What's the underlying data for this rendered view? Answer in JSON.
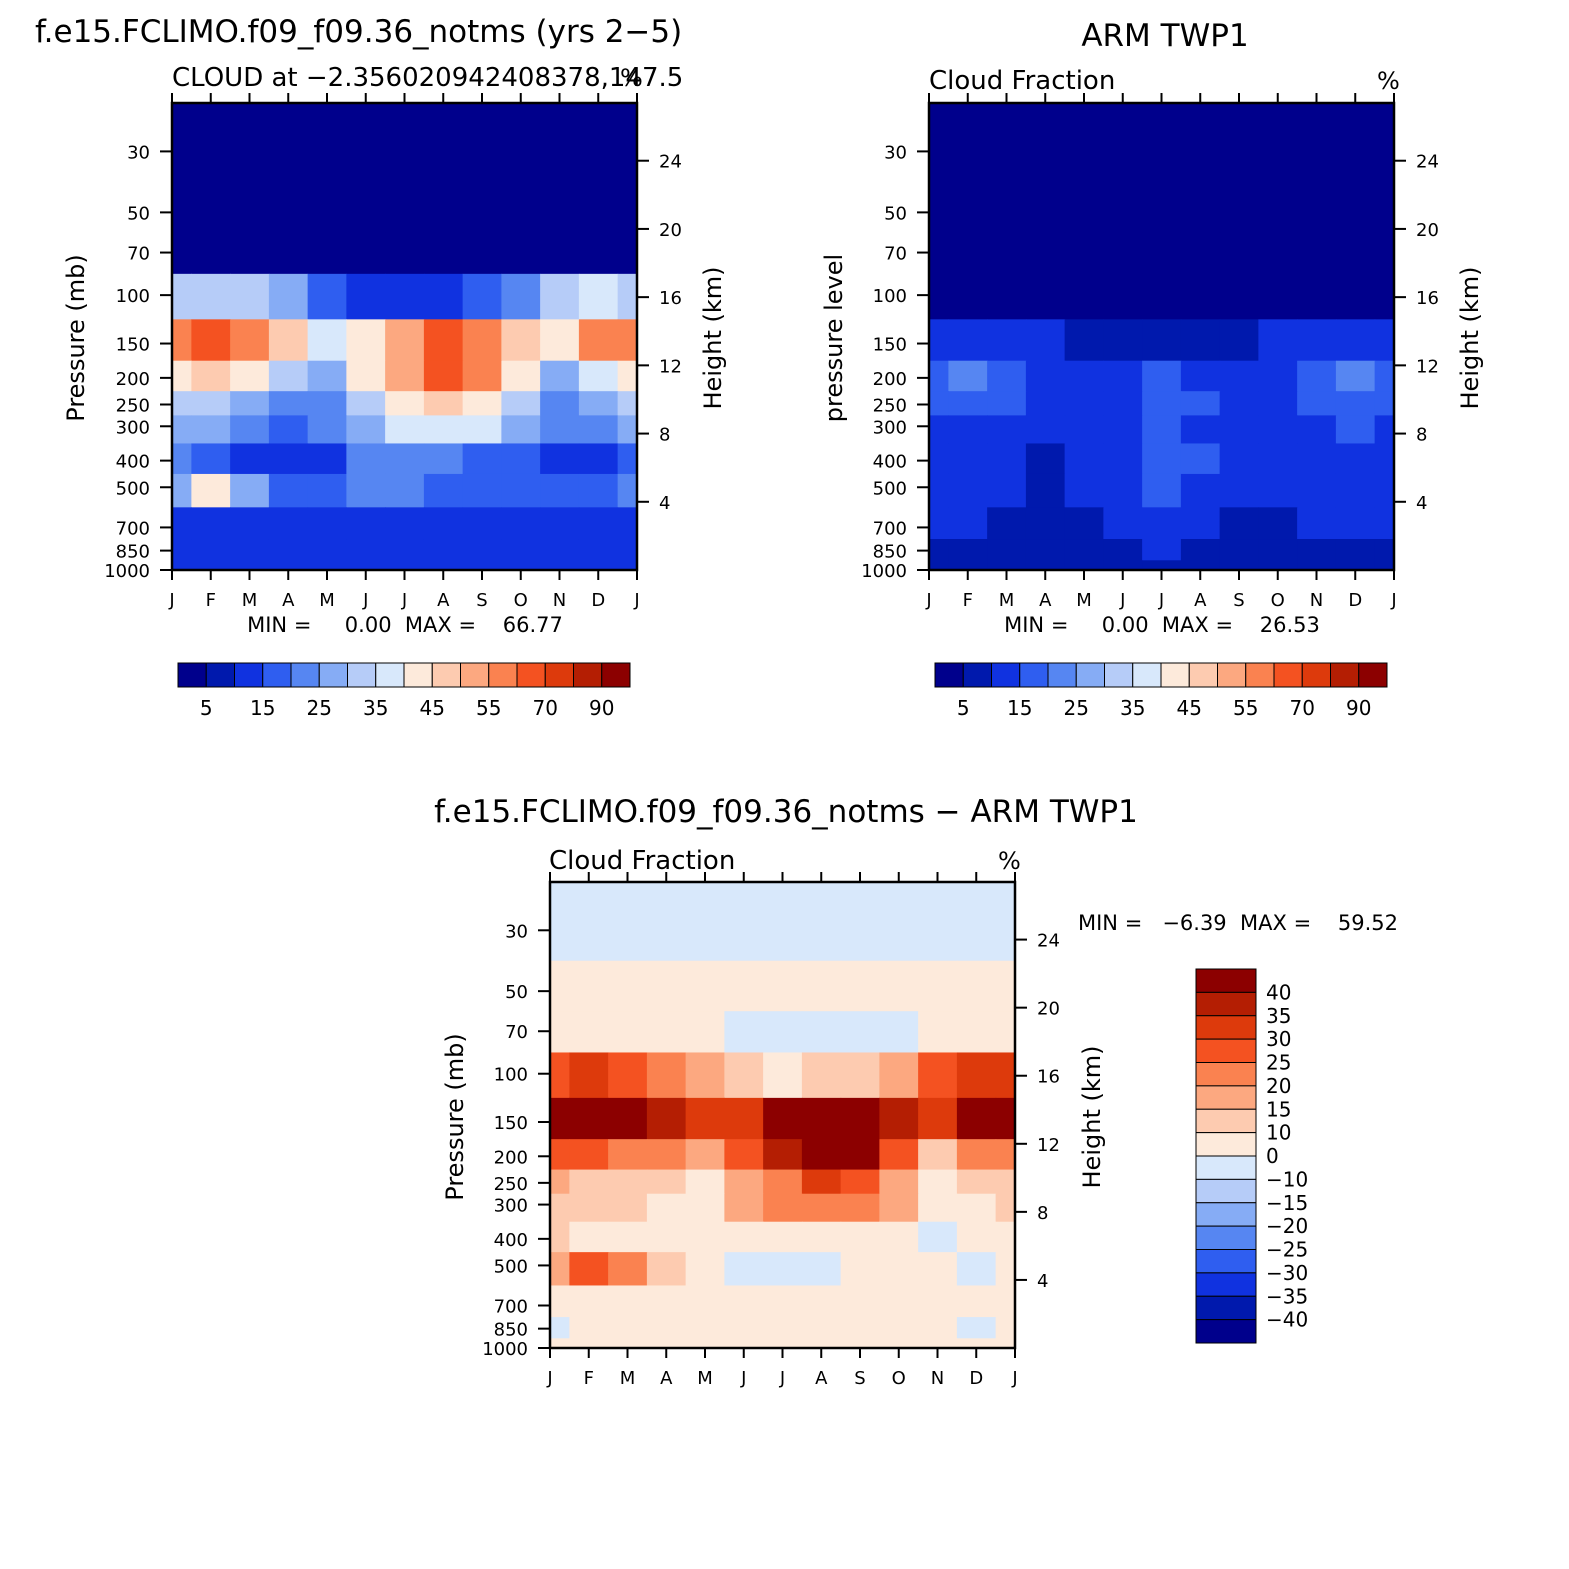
{
  "colors": {
    "abs_scale": [
      "#00008c",
      "#0019ad",
      "#1032e0",
      "#2f5ef0",
      "#5686f2",
      "#86acf5",
      "#b6ccf8",
      "#d8e8fb",
      "#fdeadb",
      "#fdcbb0",
      "#fca880",
      "#fa8250",
      "#f45221",
      "#dd3a0c",
      "#b41e03",
      "#8c0000"
    ],
    "diff_scale": [
      "#8c0000",
      "#b41e03",
      "#dd3a0c",
      "#f45221",
      "#fa8250",
      "#fca880",
      "#fdcbb0",
      "#fdeadb",
      "#d8e8fb",
      "#b6ccf8",
      "#86acf5",
      "#5686f2",
      "#2f5ef0",
      "#1032e0",
      "#0019ad",
      "#00008c"
    ]
  },
  "axes": {
    "months": [
      "J",
      "F",
      "M",
      "A",
      "M",
      "J",
      "J",
      "A",
      "S",
      "O",
      "N",
      "D",
      "J"
    ],
    "pressure_ticks": [
      "30",
      "50",
      "70",
      "100",
      "150",
      "200",
      "250",
      "300",
      "400",
      "500",
      "700",
      "850",
      "1000"
    ],
    "height_ticks": [
      "24",
      "20",
      "16",
      "12",
      "8",
      "4"
    ]
  },
  "panels": {
    "model": {
      "title": "f.e15.FCLIMO.f09_f09.36_notms (yrs 2−5)",
      "subtitle": "CLOUD at −2.356020942408378,147.5",
      "units": "%",
      "ylabel": "Pressure (mb)",
      "ylabel_right": "Height (km)",
      "minmax": "MIN =     0.00  MAX =    66.77",
      "colorbar_labels": [
        "5",
        "15",
        "25",
        "35",
        "45",
        "55",
        "70",
        "90"
      ]
    },
    "obs": {
      "title": "ARM TWP1",
      "subtitle": "Cloud Fraction",
      "units": "%",
      "ylabel": "pressure level",
      "ylabel_right": "Height (km)",
      "minmax": "MIN =     0.00  MAX =    26.53",
      "colorbar_labels": [
        "5",
        "15",
        "25",
        "35",
        "45",
        "55",
        "70",
        "90"
      ]
    },
    "diff": {
      "title": "f.e15.FCLIMO.f09_f09.36_notms − ARM TWP1",
      "subtitle": "Cloud Fraction",
      "units": "%",
      "ylabel": "Pressure (mb)",
      "ylabel_right": "Height (km)",
      "minmax": "MIN =   −6.39  MAX =    59.52",
      "colorbar_labels": [
        "40",
        "35",
        "30",
        "25",
        "20",
        "15",
        "10",
        "0",
        "−10",
        "−15",
        "−20",
        "−25",
        "−30",
        "−35",
        "−40"
      ]
    }
  },
  "chart_data": [
    {
      "type": "heatmap",
      "title": "f.e15.FCLIMO.f09_f09.36_notms (yrs 2−5)",
      "subtitle": "CLOUD at −2.356020942408378,147.5",
      "xlabel": "",
      "ylabel": "Pressure (mb)",
      "ylabel_right": "Height (km)",
      "units": "%",
      "x": [
        "J",
        "F",
        "M",
        "A",
        "M",
        "J",
        "J",
        "A",
        "S",
        "O",
        "N",
        "D",
        "J"
      ],
      "y_pressure": [
        20,
        30,
        50,
        70,
        100,
        150,
        200,
        250,
        300,
        400,
        500,
        700,
        850,
        1000
      ],
      "levels": [
        0,
        5,
        10,
        15,
        20,
        25,
        30,
        35,
        40,
        45,
        50,
        55,
        60,
        70,
        80,
        90
      ],
      "values": [
        [
          0,
          0,
          0,
          0,
          0,
          0,
          0,
          0,
          0,
          0,
          0,
          0,
          0
        ],
        [
          0,
          0,
          0,
          0,
          0,
          0,
          0,
          0,
          0,
          0,
          0,
          0,
          0
        ],
        [
          0,
          0,
          0,
          0,
          0,
          0,
          0,
          0,
          0,
          0,
          0,
          0,
          0
        ],
        [
          4,
          3,
          3,
          2,
          2,
          1,
          1,
          1,
          1,
          1,
          2,
          3,
          4
        ],
        [
          30,
          32,
          30,
          25,
          18,
          12,
          10,
          12,
          15,
          20,
          30,
          35,
          32
        ],
        [
          55,
          62,
          58,
          48,
          38,
          42,
          50,
          60,
          58,
          48,
          42,
          55,
          58
        ],
        [
          42,
          45,
          40,
          32,
          28,
          40,
          52,
          62,
          58,
          40,
          28,
          38,
          40
        ],
        [
          32,
          30,
          28,
          22,
          20,
          30,
          40,
          45,
          42,
          30,
          22,
          28,
          30
        ],
        [
          28,
          25,
          22,
          18,
          20,
          28,
          36,
          38,
          35,
          28,
          20,
          22,
          25
        ],
        [
          20,
          18,
          14,
          10,
          14,
          20,
          22,
          20,
          18,
          15,
          12,
          14,
          16
        ],
        [
          28,
          40,
          28,
          16,
          18,
          20,
          20,
          18,
          18,
          18,
          15,
          18,
          20
        ],
        [
          14,
          12,
          12,
          12,
          13,
          14,
          14,
          14,
          13,
          12,
          12,
          12,
          12
        ],
        [
          12,
          11,
          11,
          11,
          12,
          12,
          12,
          12,
          11,
          11,
          11,
          11,
          11
        ],
        [
          10,
          10,
          10,
          10,
          10,
          10,
          10,
          10,
          10,
          10,
          10,
          10,
          10
        ]
      ],
      "min": 0.0,
      "max": 66.77
    },
    {
      "type": "heatmap",
      "title": "ARM TWP1",
      "subtitle": "Cloud Fraction",
      "ylabel": "pressure level",
      "ylabel_right": "Height (km)",
      "units": "%",
      "x": [
        "J",
        "F",
        "M",
        "A",
        "M",
        "J",
        "J",
        "A",
        "S",
        "O",
        "N",
        "D",
        "J"
      ],
      "y_pressure": [
        20,
        30,
        50,
        70,
        100,
        150,
        200,
        250,
        300,
        400,
        500,
        700,
        850,
        1000
      ],
      "levels": [
        0,
        5,
        10,
        15,
        20,
        25,
        30,
        35,
        40,
        45,
        50,
        55,
        60,
        70,
        80,
        90
      ],
      "values": [
        [
          0,
          0,
          0,
          0,
          0,
          0,
          0,
          0,
          0,
          0,
          0,
          0,
          0
        ],
        [
          0,
          0,
          0,
          0,
          0,
          0,
          0,
          0,
          0,
          0,
          0,
          0,
          0
        ],
        [
          0,
          0,
          0,
          0,
          0,
          0,
          0,
          0,
          0,
          0,
          0,
          0,
          0
        ],
        [
          0,
          0,
          0,
          0,
          0,
          0,
          0,
          0,
          0,
          0,
          0,
          0,
          0
        ],
        [
          4,
          4,
          4,
          3,
          2,
          2,
          2,
          3,
          4,
          4,
          4,
          4,
          4
        ],
        [
          10,
          10,
          10,
          10,
          9,
          9,
          9,
          9,
          9,
          10,
          10,
          10,
          10
        ],
        [
          18,
          20,
          18,
          12,
          11,
          12,
          16,
          14,
          13,
          14,
          18,
          20,
          18
        ],
        [
          17,
          19,
          16,
          12,
          12,
          13,
          18,
          15,
          13,
          14,
          17,
          19,
          17
        ],
        [
          14,
          14,
          13,
          11,
          12,
          13,
          16,
          14,
          13,
          13,
          14,
          15,
          14
        ],
        [
          12,
          12,
          11,
          7,
          11,
          12,
          16,
          15,
          14,
          12,
          12,
          12,
          12
        ],
        [
          11,
          11,
          10,
          7,
          10,
          12,
          15,
          14,
          13,
          11,
          11,
          11,
          11
        ],
        [
          10,
          10,
          9,
          6,
          8,
          10,
          11,
          10,
          7,
          7,
          10,
          10,
          10
        ],
        [
          9,
          9,
          8,
          6,
          8,
          9,
          10,
          9,
          8,
          8,
          9,
          9,
          9
        ],
        [
          9,
          9,
          9,
          9,
          9,
          9,
          9,
          9,
          9,
          9,
          9,
          9,
          9
        ]
      ],
      "min": 0.0,
      "max": 26.53
    },
    {
      "type": "heatmap",
      "title": "f.e15.FCLIMO.f09_f09.36_notms − ARM TWP1",
      "subtitle": "Cloud Fraction",
      "ylabel": "Pressure (mb)",
      "ylabel_right": "Height (km)",
      "units": "%",
      "x": [
        "J",
        "F",
        "M",
        "A",
        "M",
        "J",
        "J",
        "A",
        "S",
        "O",
        "N",
        "D",
        "J"
      ],
      "y_pressure": [
        20,
        30,
        50,
        70,
        100,
        150,
        200,
        250,
        300,
        400,
        500,
        700,
        850,
        1000
      ],
      "levels": [
        -40,
        -35,
        -30,
        -25,
        -20,
        -15,
        -10,
        0,
        10,
        15,
        20,
        25,
        30,
        35,
        40
      ],
      "values": [
        [
          -4,
          -4,
          -4,
          -4,
          -4,
          -4,
          -4,
          -4,
          -4,
          -4,
          -4,
          -4,
          -4
        ],
        [
          -3,
          -3,
          -3,
          -3,
          -3,
          -3,
          -3,
          -3,
          -3,
          -3,
          -3,
          -3,
          -3
        ],
        [
          3,
          3,
          3,
          3,
          3,
          1,
          1,
          1,
          1,
          1,
          3,
          3,
          3
        ],
        [
          5,
          5,
          5,
          5,
          5,
          -1,
          -1,
          -1,
          -1,
          -1,
          5,
          5,
          5
        ],
        [
          28,
          30,
          28,
          24,
          18,
          10,
          8,
          10,
          12,
          16,
          26,
          32,
          30
        ],
        [
          45,
          50,
          45,
          38,
          30,
          34,
          42,
          50,
          48,
          38,
          32,
          44,
          48
        ],
        [
          25,
          26,
          22,
          20,
          18,
          28,
          36,
          48,
          45,
          28,
          14,
          20,
          22
        ],
        [
          16,
          12,
          12,
          10,
          8,
          18,
          24,
          30,
          28,
          18,
          6,
          10,
          12
        ],
        [
          14,
          11,
          10,
          8,
          8,
          16,
          20,
          24,
          22,
          16,
          6,
          7,
          10
        ],
        [
          10,
          8,
          5,
          3,
          3,
          8,
          6,
          5,
          5,
          3,
          -1,
          3,
          5
        ],
        [
          16,
          28,
          22,
          10,
          8,
          -1,
          -2,
          -1,
          3,
          6,
          2,
          -1,
          3
        ],
        [
          4,
          3,
          3,
          6,
          5,
          3,
          3,
          4,
          5,
          5,
          3,
          2,
          3
        ],
        [
          -3,
          3,
          4,
          4,
          4,
          3,
          3,
          3,
          3,
          3,
          3,
          -2,
          3
        ],
        [
          2,
          2,
          2,
          2,
          2,
          2,
          2,
          2,
          2,
          2,
          2,
          2,
          2
        ]
      ],
      "min": -6.39,
      "max": 59.52
    }
  ]
}
